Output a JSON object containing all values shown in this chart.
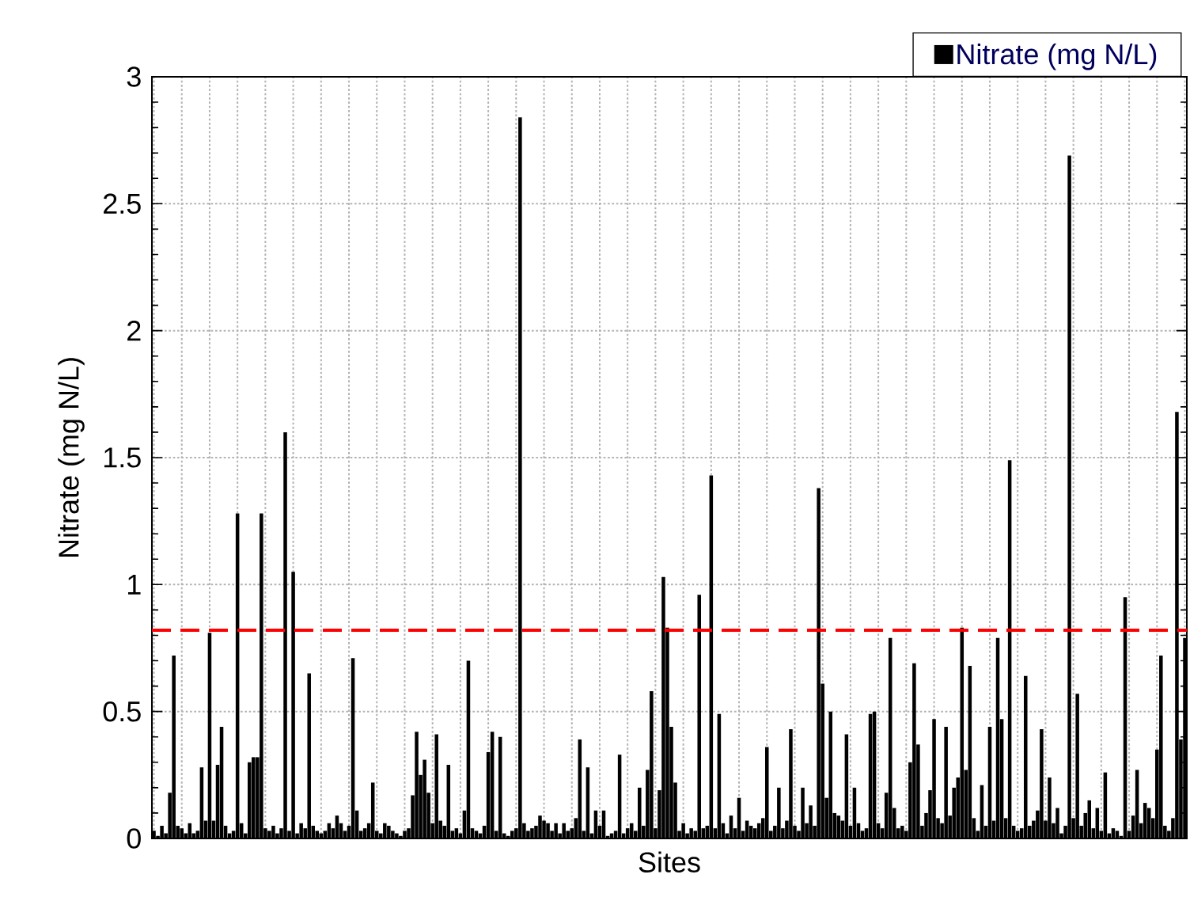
{
  "chart_data": {
    "type": "bar",
    "xlabel": "Sites",
    "ylabel": "Nitrate (mg N/L)",
    "categories": [
      null,
      null,
      null,
      null,
      null,
      null,
      null,
      null,
      null,
      null,
      null,
      null,
      null,
      null,
      null,
      null,
      null,
      null,
      null,
      null,
      null,
      null,
      null,
      null,
      null,
      null,
      null,
      null,
      null,
      null,
      null,
      null,
      null,
      null,
      null,
      null,
      null,
      null,
      null,
      null,
      null,
      null,
      null,
      null,
      null,
      null,
      null,
      null,
      null,
      null,
      null,
      null,
      null,
      null,
      null,
      null,
      null,
      null,
      null,
      null,
      null,
      null,
      null,
      null,
      null,
      null,
      null,
      null,
      null,
      null,
      null,
      null,
      null,
      null,
      null,
      null,
      null,
      null,
      null,
      null,
      null,
      null,
      null,
      null,
      null,
      null,
      null,
      null,
      null,
      null,
      null,
      null,
      null,
      null,
      null,
      null,
      null,
      null,
      null,
      null,
      null,
      null,
      null,
      null,
      null,
      null,
      null,
      null,
      null,
      null,
      null,
      null,
      null,
      null,
      null,
      null,
      null,
      null,
      null,
      null,
      null,
      null,
      null,
      null,
      null,
      null,
      null,
      null,
      null,
      null,
      null,
      null,
      null,
      null,
      null,
      null,
      null,
      null,
      null,
      null,
      null,
      null,
      null,
      null,
      null,
      null,
      null,
      null,
      null,
      null,
      null,
      null,
      null,
      null,
      null,
      null,
      null,
      null,
      null,
      null,
      null,
      null,
      null,
      null,
      null,
      null,
      null,
      null,
      null,
      null,
      null,
      null,
      null,
      null,
      null,
      null,
      null,
      null,
      null,
      null,
      null,
      null,
      null,
      null,
      null,
      null,
      null,
      null,
      null,
      null,
      null,
      null,
      null,
      null,
      null,
      null,
      null,
      null,
      null,
      null,
      null,
      null,
      null,
      null,
      null,
      null,
      null,
      null,
      null,
      null,
      null,
      null,
      null,
      null,
      null,
      null,
      null,
      null,
      null,
      null,
      null,
      null,
      null,
      null,
      null,
      null,
      null,
      null,
      null,
      null,
      null,
      null,
      null,
      null,
      null,
      null,
      null,
      null,
      null,
      null,
      null,
      null,
      null,
      null,
      null,
      null,
      null,
      null,
      null,
      null,
      null,
      null,
      null,
      null,
      null,
      null,
      null,
      null,
      null,
      null
    ],
    "series": [
      {
        "name": "Nitrate (mg N/L)",
        "color": "#000000",
        "values": [
          0.03,
          0.01,
          0.05,
          0.02,
          0.18,
          0.72,
          0.05,
          0.04,
          0.02,
          0.06,
          0.02,
          0.03,
          0.28,
          0.07,
          0.81,
          0.07,
          0.29,
          0.44,
          0.05,
          0.02,
          0.03,
          1.28,
          0.06,
          0.02,
          0.3,
          0.32,
          0.32,
          1.28,
          0.04,
          0.03,
          0.05,
          0.02,
          0.04,
          1.6,
          0.03,
          1.05,
          0.02,
          0.06,
          0.04,
          0.65,
          0.05,
          0.03,
          0.02,
          0.03,
          0.06,
          0.04,
          0.09,
          0.06,
          0.03,
          0.05,
          0.71,
          0.11,
          0.03,
          0.04,
          0.06,
          0.22,
          0.03,
          0.02,
          0.06,
          0.05,
          0.03,
          0.02,
          0.01,
          0.03,
          0.04,
          0.17,
          0.42,
          0.25,
          0.31,
          0.18,
          0.06,
          0.41,
          0.07,
          0.05,
          0.29,
          0.03,
          0.04,
          0.02,
          0.11,
          0.7,
          0.04,
          0.03,
          0.02,
          0.05,
          0.34,
          0.42,
          0.03,
          0.4,
          0.02,
          0.01,
          0.03,
          0.04,
          2.84,
          0.06,
          0.03,
          0.04,
          0.05,
          0.09,
          0.07,
          0.06,
          0.03,
          0.06,
          0.02,
          0.06,
          0.03,
          0.04,
          0.08,
          0.39,
          0.03,
          0.28,
          0.02,
          0.11,
          0.05,
          0.11,
          0.01,
          0.02,
          0.03,
          0.33,
          0.02,
          0.04,
          0.06,
          0.03,
          0.2,
          0.05,
          0.27,
          0.58,
          0.04,
          0.19,
          1.03,
          0.83,
          0.44,
          0.22,
          0.03,
          0.06,
          0.02,
          0.04,
          0.03,
          0.96,
          0.04,
          0.05,
          1.43,
          0.04,
          0.49,
          0.06,
          0.02,
          0.09,
          0.04,
          0.16,
          0.03,
          0.07,
          0.05,
          0.04,
          0.06,
          0.08,
          0.36,
          0.03,
          0.05,
          0.2,
          0.04,
          0.07,
          0.43,
          0.05,
          0.03,
          0.2,
          0.06,
          0.13,
          0.05,
          1.38,
          0.61,
          0.16,
          0.5,
          0.1,
          0.09,
          0.07,
          0.41,
          0.05,
          0.2,
          0.06,
          0.03,
          0.04,
          0.49,
          0.5,
          0.06,
          0.04,
          0.18,
          0.79,
          0.12,
          0.04,
          0.05,
          0.03,
          0.3,
          0.69,
          0.37,
          0.05,
          0.1,
          0.19,
          0.47,
          0.08,
          0.06,
          0.44,
          0.09,
          0.2,
          0.24,
          0.83,
          0.27,
          0.68,
          0.08,
          0.03,
          0.21,
          0.05,
          0.44,
          0.07,
          0.79,
          0.47,
          0.08,
          1.49,
          0.05,
          0.03,
          0.04,
          0.64,
          0.05,
          0.07,
          0.11,
          0.43,
          0.07,
          0.24,
          0.06,
          0.12,
          0.02,
          0.05,
          2.69,
          0.08,
          0.57,
          0.05,
          0.1,
          0.15,
          0.04,
          0.12,
          0.03,
          0.26,
          0.02,
          0.04,
          0.03,
          0.01,
          0.95,
          0.03,
          0.09,
          0.27,
          0.06,
          0.14,
          0.12,
          0.08,
          0.35,
          0.72,
          0.05,
          0.03,
          0.08,
          1.68,
          0.39,
          0.79
        ]
      }
    ],
    "ylim": [
      0,
      3
    ],
    "yticks": [
      0,
      0.5,
      1,
      1.5,
      2,
      2.5,
      3
    ],
    "ref_lines": [
      {
        "axis": "y",
        "value": 0.82,
        "color": "#ff0000",
        "line_style": "dashed"
      }
    ],
    "grid": true,
    "legend": "top right"
  }
}
